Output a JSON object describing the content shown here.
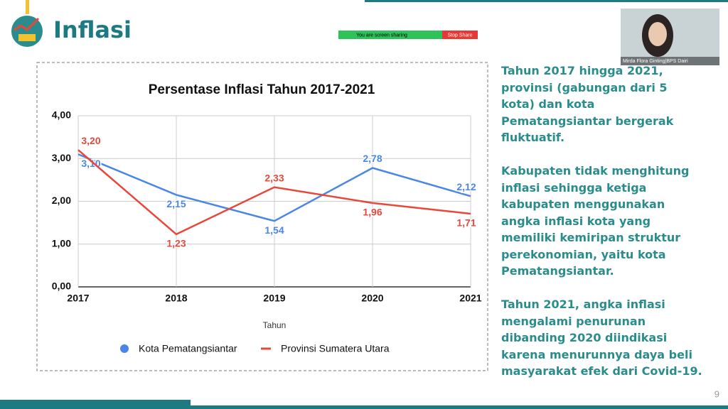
{
  "slide": {
    "title": "Inflasi",
    "page_number": "9",
    "paragraphs": [
      "Tahun 2017 hingga 2021, provinsi (gabungan dari 5 kota) dan kota Pematangsiantar bergerak fluktuatif.",
      "Kabupaten tidak menghitung inflasi sehingga ketiga kabupaten menggunakan angka inflasi kota yang memiliki kemiripan struktur perekonomian, yaitu kota Pematangsiantar.",
      "Tahun 2021, angka inflasi mengalami penurunan dibanding 2020 diindikasi karena menurunnya daya beli masyarakat efek dari Covid-19."
    ]
  },
  "screen_share": {
    "status": "You are screen sharing",
    "stop_button": "Stop Share"
  },
  "video": {
    "name": "Mirda Flora Ginting|BPS Dairi"
  },
  "chart_data": {
    "type": "line",
    "title": "Persentase Inflasi Tahun 2017-2021",
    "x_label": "Tahun",
    "categories": [
      "2017",
      "2018",
      "2019",
      "2020",
      "2021"
    ],
    "series": [
      {
        "name": "Kota Pematangsiantar",
        "color": "#4a86e8",
        "values": [
          3.1,
          2.15,
          1.54,
          2.78,
          2.12
        ],
        "value_labels": [
          "3,10",
          "2,15",
          "1,54",
          "2,78",
          "2,12"
        ]
      },
      {
        "name": "Provinsi Sumatera Utara",
        "color": "#e8473a",
        "values": [
          3.2,
          1.23,
          2.33,
          1.96,
          1.71
        ],
        "value_labels": [
          "3,20",
          "1,23",
          "2,33",
          "1,96",
          "1,71"
        ]
      }
    ],
    "ylim": [
      0,
      4
    ],
    "yticks": [
      {
        "value": 0,
        "label": "0,00"
      },
      {
        "value": 1,
        "label": "1,00"
      },
      {
        "value": 2,
        "label": "2,00"
      },
      {
        "value": 3,
        "label": "3,00"
      },
      {
        "value": 4,
        "label": "4,00"
      }
    ],
    "grid": true,
    "legend": "bottom"
  }
}
